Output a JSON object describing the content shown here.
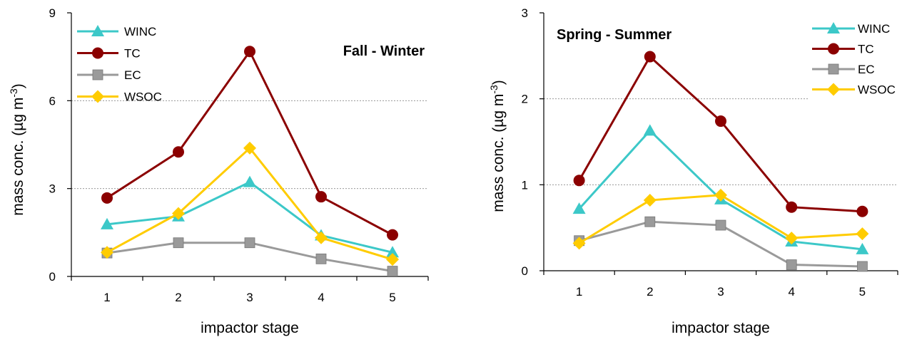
{
  "chart_data": [
    {
      "type": "line",
      "title": "Fall - Winter",
      "xlabel": "impactor stage",
      "ylabel_main": "mass conc. (µg m",
      "ylabel_sup": "-3",
      "ylabel_tail": ")",
      "x": [
        1,
        2,
        3,
        4,
        5
      ],
      "x_ticks": [
        "1",
        "2",
        "3",
        "4",
        "5"
      ],
      "ylim": [
        0,
        9
      ],
      "y_ticks": [
        0,
        3,
        6,
        9
      ],
      "y_tick_labels": [
        "0",
        "3",
        "6",
        "9"
      ],
      "grid": "horizontal dashed",
      "legend_position": "top-left",
      "series": [
        {
          "name": "WINC",
          "color": "#3cc8c8",
          "marker": "triangle",
          "values": [
            1.78,
            2.05,
            3.22,
            1.4,
            0.82
          ]
        },
        {
          "name": "TC",
          "color": "#8b0000",
          "marker": "circle",
          "values": [
            2.68,
            4.25,
            7.68,
            2.72,
            1.42
          ]
        },
        {
          "name": "EC",
          "color": "#9a9a9a",
          "marker": "square",
          "values": [
            0.8,
            1.15,
            1.15,
            0.6,
            0.18
          ]
        },
        {
          "name": "WSOC",
          "color": "#ffcc00",
          "marker": "diamond",
          "values": [
            0.82,
            2.15,
            4.38,
            1.32,
            0.58
          ]
        }
      ]
    },
    {
      "type": "line",
      "title": "Spring - Summer",
      "xlabel": "impactor stage",
      "ylabel_main": "mass conc. (µg m",
      "ylabel_sup": "-3",
      "ylabel_tail": ")",
      "x": [
        1,
        2,
        3,
        4,
        5
      ],
      "x_ticks": [
        "1",
        "2",
        "3",
        "4",
        "5"
      ],
      "ylim": [
        0,
        3
      ],
      "y_ticks": [
        0,
        1,
        2,
        3
      ],
      "y_tick_labels": [
        "0",
        "1",
        "2",
        "3"
      ],
      "grid": "horizontal dashed",
      "legend_position": "top-right",
      "series": [
        {
          "name": "WINC",
          "color": "#3cc8c8",
          "marker": "triangle",
          "values": [
            0.72,
            1.63,
            0.83,
            0.34,
            0.25
          ]
        },
        {
          "name": "TC",
          "color": "#8b0000",
          "marker": "circle",
          "values": [
            1.05,
            2.49,
            1.74,
            0.74,
            0.69
          ]
        },
        {
          "name": "EC",
          "color": "#9a9a9a",
          "marker": "square",
          "values": [
            0.35,
            0.57,
            0.53,
            0.07,
            0.05
          ]
        },
        {
          "name": "WSOC",
          "color": "#ffcc00",
          "marker": "diamond",
          "values": [
            0.32,
            0.82,
            0.88,
            0.38,
            0.43
          ]
        }
      ]
    }
  ]
}
